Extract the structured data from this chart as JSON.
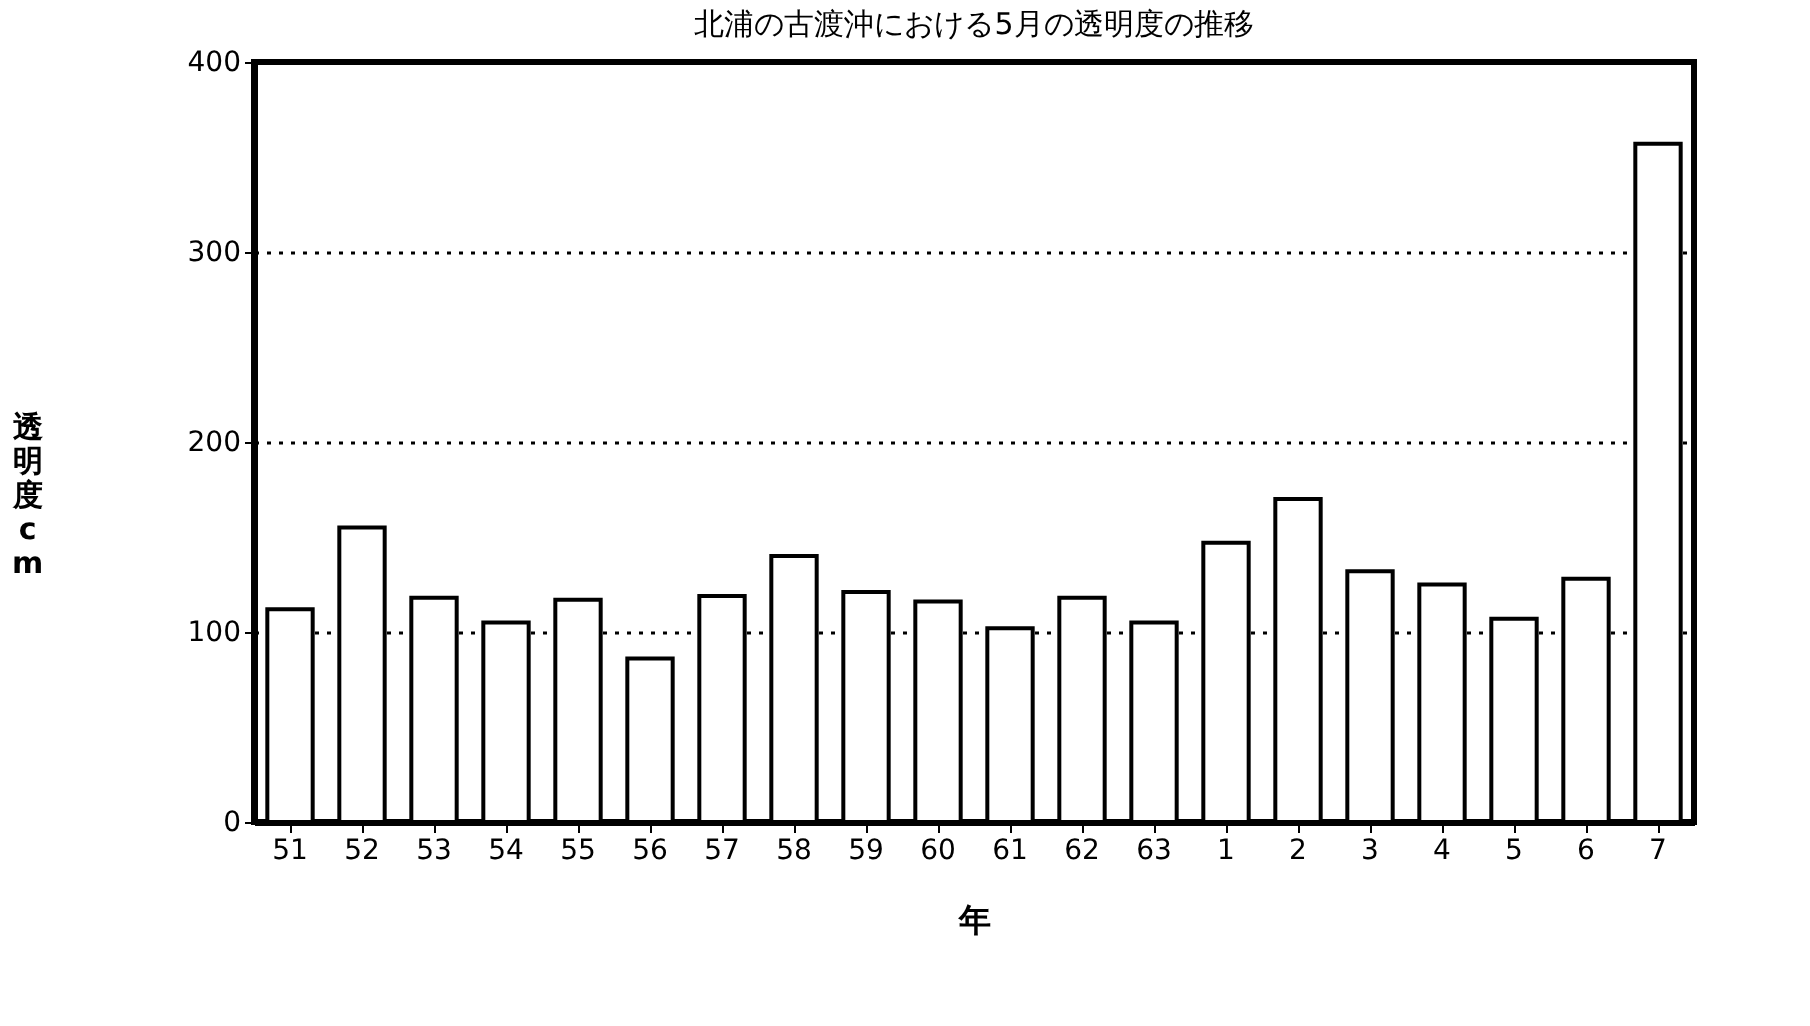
{
  "chart_data": {
    "type": "bar",
    "title": "北浦の古渡沖における5月の透明度の推移",
    "xlabel": "年",
    "ylabel": "透明度cm",
    "categories": [
      "51",
      "52",
      "53",
      "54",
      "55",
      "56",
      "57",
      "58",
      "59",
      "60",
      "61",
      "62",
      "63",
      "1",
      "2",
      "3",
      "4",
      "5",
      "6",
      "7"
    ],
    "values": [
      112,
      155,
      118,
      105,
      117,
      86,
      119,
      140,
      121,
      116,
      102,
      118,
      105,
      147,
      170,
      132,
      125,
      107,
      128,
      357
    ],
    "color": "#ffffff",
    "ylim": [
      0,
      400
    ],
    "yticks": [
      0,
      100,
      200,
      300,
      400
    ],
    "grid": "y",
    "line_style": "dotted"
  }
}
